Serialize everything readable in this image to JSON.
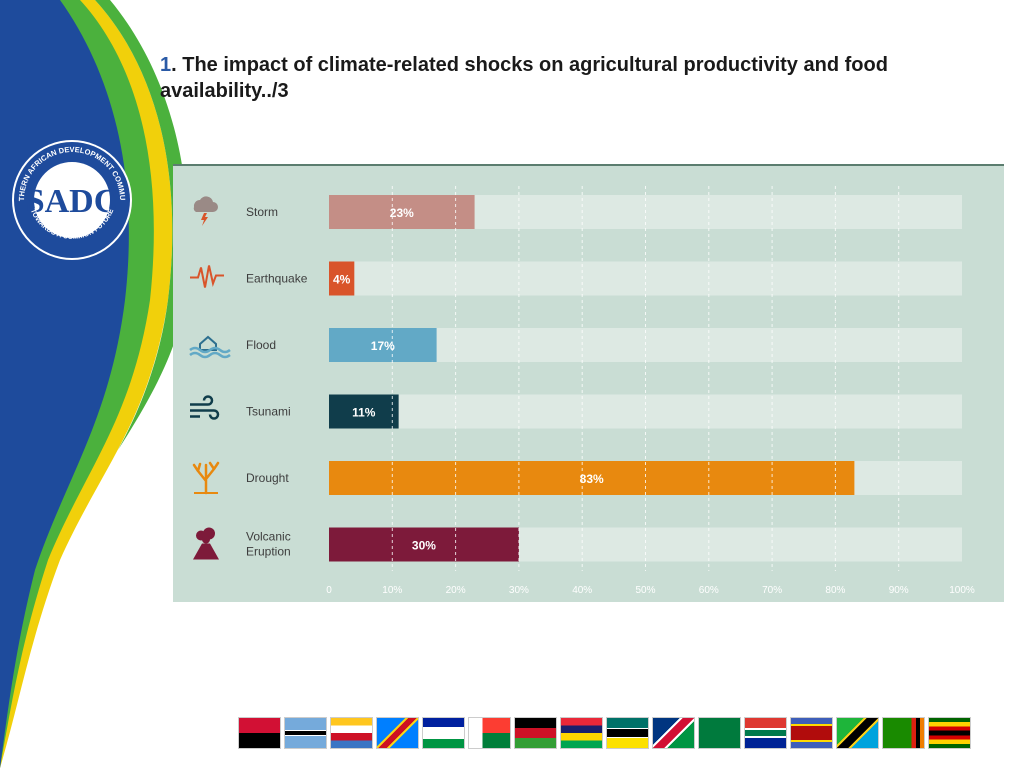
{
  "slide": {
    "title_number": "1",
    "title_text": ". The impact of climate-related shocks on agricultural productivity and food availability../3"
  },
  "logo": {
    "text": "SOUTHERN AFRICAN DEVELOPMENT COMMUNITY",
    "bottom_text": "TOWARDS A COMMON FUTURE",
    "monogram": "SADC"
  },
  "chart_data": {
    "type": "bar",
    "orientation": "horizontal",
    "categories": [
      "Storm",
      "Earthquake",
      "Flood",
      "Tsunami",
      "Drought",
      "Volcanic Eruption"
    ],
    "values": [
      23,
      4,
      17,
      11,
      83,
      30
    ],
    "value_labels": [
      "23%",
      "4%",
      "17%",
      "11%",
      "83%",
      "30%"
    ],
    "colors": [
      "#c48e86",
      "#d9542a",
      "#62a9c6",
      "#103d4b",
      "#e8890f",
      "#7d1a3a"
    ],
    "icons": [
      "storm-icon",
      "earthquake-icon",
      "flood-icon",
      "tsunami-icon",
      "drought-icon",
      "volcanic-eruption-icon"
    ],
    "xlim": [
      0,
      100
    ],
    "ticks": [
      "0",
      "10%",
      "20%",
      "30%",
      "40%",
      "50%",
      "60%",
      "70%",
      "80%",
      "90%",
      "100%"
    ],
    "grid": true
  },
  "flags": [
    "Angola",
    "Botswana",
    "Comoros",
    "DR Congo",
    "Lesotho",
    "Madagascar",
    "Malawi",
    "Mauritius",
    "Mozambique",
    "Namibia",
    "Seychelles",
    "South Africa",
    "Eswatini",
    "Tanzania",
    "Zambia",
    "Zimbabwe"
  ],
  "colors": {
    "panel_bg": "#c9ddd4",
    "track": "#dde9e3",
    "blue": "#1e4b9c",
    "green": "#4bb13d",
    "yellow": "#f1d00b"
  }
}
